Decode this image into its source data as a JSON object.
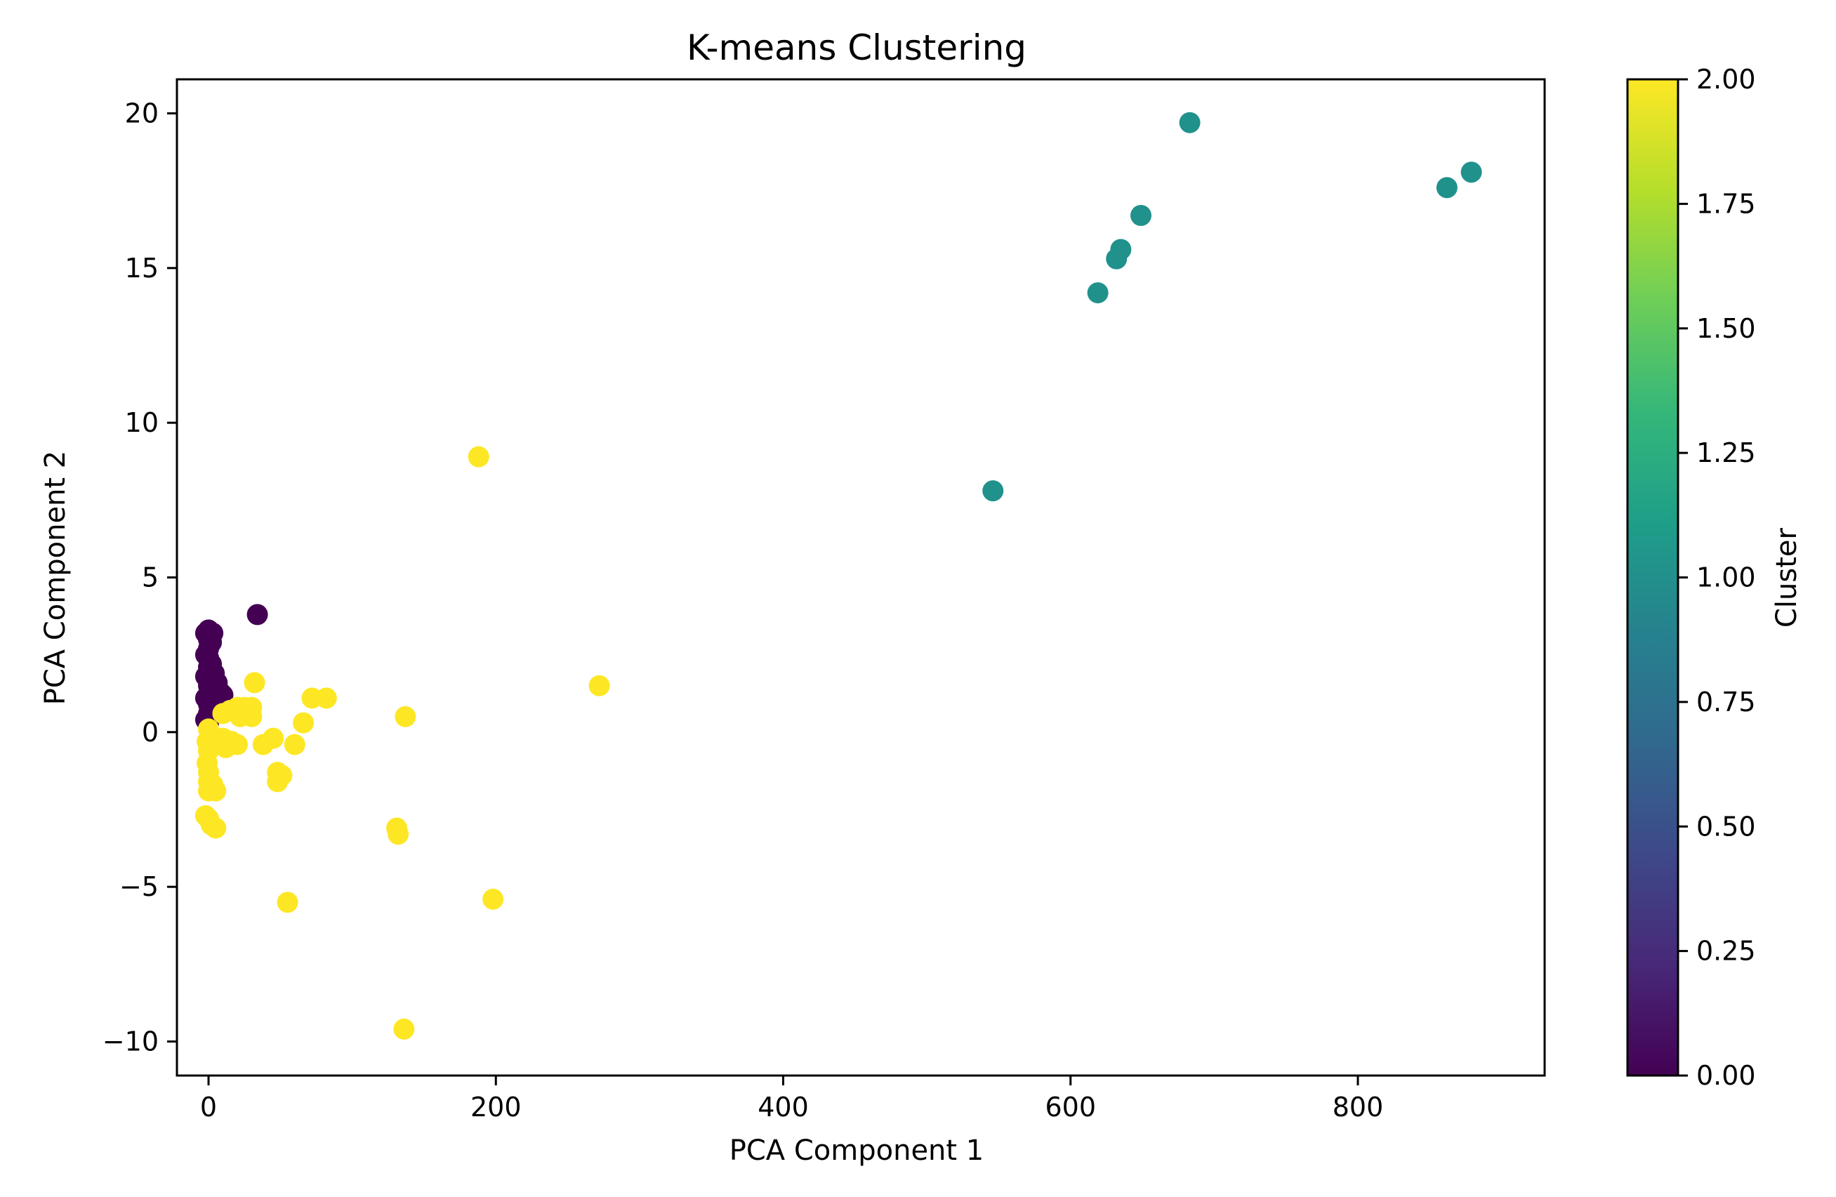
{
  "chart_data": {
    "type": "scatter",
    "title": "K-means Clustering",
    "xlabel": "PCA Component 1",
    "ylabel": "PCA Component 2",
    "xlim": [
      -22,
      930
    ],
    "ylim": [
      -11.1,
      21.1
    ],
    "xticks": [
      0,
      200,
      400,
      600,
      800
    ],
    "yticks": [
      -10,
      -5,
      0,
      5,
      10,
      15,
      20
    ],
    "grid": false,
    "legend": "none",
    "colorbar": {
      "label": "Cluster",
      "colormap": "viridis",
      "range": [
        0.0,
        2.0
      ],
      "ticks": [
        "0.00",
        "0.25",
        "0.50",
        "0.75",
        "1.00",
        "1.25",
        "1.50",
        "1.75",
        "2.00"
      ],
      "stops": [
        "#440154",
        "#482878",
        "#3e4989",
        "#31688e",
        "#26828e",
        "#1f9e89",
        "#35b779",
        "#6ece58",
        "#b5de2b",
        "#fde725"
      ]
    },
    "cluster_colors": {
      "0": "#440154",
      "1": "#21918c",
      "2": "#fde725"
    },
    "points": [
      {
        "x": 0,
        "y": 3.3,
        "c": 0
      },
      {
        "x": 0,
        "y": 3.0,
        "c": 0
      },
      {
        "x": 0,
        "y": 2.7,
        "c": 0
      },
      {
        "x": 0,
        "y": 2.4,
        "c": 0
      },
      {
        "x": 0,
        "y": 2.1,
        "c": 0
      },
      {
        "x": 0,
        "y": 1.8,
        "c": 0
      },
      {
        "x": 0,
        "y": 1.5,
        "c": 0
      },
      {
        "x": 0,
        "y": 1.2,
        "c": 0
      },
      {
        "x": 0,
        "y": 0.9,
        "c": 0
      },
      {
        "x": 0,
        "y": 0.6,
        "c": 0
      },
      {
        "x": 0,
        "y": 0.3,
        "c": 0
      },
      {
        "x": -2,
        "y": 3.2,
        "c": 0
      },
      {
        "x": -2,
        "y": 2.5,
        "c": 0
      },
      {
        "x": -2,
        "y": 1.8,
        "c": 0
      },
      {
        "x": -2,
        "y": 1.1,
        "c": 0
      },
      {
        "x": -2,
        "y": 0.4,
        "c": 0
      },
      {
        "x": 2,
        "y": 2.9,
        "c": 0
      },
      {
        "x": 2,
        "y": 2.2,
        "c": 0
      },
      {
        "x": 2,
        "y": 1.5,
        "c": 0
      },
      {
        "x": 2,
        "y": 0.8,
        "c": 0
      },
      {
        "x": 3,
        "y": 3.2,
        "c": 0
      },
      {
        "x": 4,
        "y": 1.9,
        "c": 0
      },
      {
        "x": 4,
        "y": 1.3,
        "c": 0
      },
      {
        "x": 5,
        "y": 0.6,
        "c": 0
      },
      {
        "x": 6,
        "y": 1.6,
        "c": 0
      },
      {
        "x": 8,
        "y": 1.3,
        "c": 0
      },
      {
        "x": 10,
        "y": 1.2,
        "c": 0
      },
      {
        "x": 7,
        "y": 0.8,
        "c": 0
      },
      {
        "x": 34,
        "y": 3.8,
        "c": 0
      },
      {
        "x": 546,
        "y": 7.8,
        "c": 1
      },
      {
        "x": 619,
        "y": 14.2,
        "c": 1
      },
      {
        "x": 632,
        "y": 15.3,
        "c": 1
      },
      {
        "x": 635,
        "y": 15.6,
        "c": 1
      },
      {
        "x": 649,
        "y": 16.7,
        "c": 1
      },
      {
        "x": 683,
        "y": 19.7,
        "c": 1
      },
      {
        "x": 862,
        "y": 17.6,
        "c": 1
      },
      {
        "x": 879,
        "y": 18.1,
        "c": 1
      },
      {
        "x": 188,
        "y": 8.9,
        "c": 2
      },
      {
        "x": 272,
        "y": 1.5,
        "c": 2
      },
      {
        "x": 137,
        "y": 0.5,
        "c": 2
      },
      {
        "x": 32,
        "y": 1.6,
        "c": 2
      },
      {
        "x": 72,
        "y": 1.1,
        "c": 2
      },
      {
        "x": 82,
        "y": 1.1,
        "c": 2
      },
      {
        "x": 10,
        "y": 0.6,
        "c": 2
      },
      {
        "x": 15,
        "y": 0.7,
        "c": 2
      },
      {
        "x": 20,
        "y": 0.8,
        "c": 2
      },
      {
        "x": 25,
        "y": 0.8,
        "c": 2
      },
      {
        "x": 30,
        "y": 0.8,
        "c": 2
      },
      {
        "x": 30,
        "y": 0.5,
        "c": 2
      },
      {
        "x": 22,
        "y": 0.5,
        "c": 2
      },
      {
        "x": 66,
        "y": 0.3,
        "c": 2
      },
      {
        "x": 0,
        "y": 0.1,
        "c": 2
      },
      {
        "x": 2,
        "y": -0.1,
        "c": 2
      },
      {
        "x": -1,
        "y": -0.3,
        "c": 2
      },
      {
        "x": 10,
        "y": -0.2,
        "c": 2
      },
      {
        "x": 16,
        "y": -0.3,
        "c": 2
      },
      {
        "x": 20,
        "y": -0.4,
        "c": 2
      },
      {
        "x": 12,
        "y": -0.5,
        "c": 2
      },
      {
        "x": 38,
        "y": -0.4,
        "c": 2
      },
      {
        "x": 45,
        "y": -0.2,
        "c": 2
      },
      {
        "x": 60,
        "y": -0.4,
        "c": 2
      },
      {
        "x": 0,
        "y": -0.6,
        "c": 2
      },
      {
        "x": -1,
        "y": -1.0,
        "c": 2
      },
      {
        "x": 0,
        "y": -1.3,
        "c": 2
      },
      {
        "x": 0,
        "y": -1.6,
        "c": 2
      },
      {
        "x": 0,
        "y": -1.9,
        "c": 2
      },
      {
        "x": 3,
        "y": -1.7,
        "c": 2
      },
      {
        "x": 5,
        "y": -1.9,
        "c": 2
      },
      {
        "x": 48,
        "y": -1.3,
        "c": 2
      },
      {
        "x": 48,
        "y": -1.6,
        "c": 2
      },
      {
        "x": 51,
        "y": -1.4,
        "c": 2
      },
      {
        "x": -2,
        "y": -2.7,
        "c": 2
      },
      {
        "x": 0,
        "y": -2.8,
        "c": 2
      },
      {
        "x": 2,
        "y": -3.0,
        "c": 2
      },
      {
        "x": 5,
        "y": -3.1,
        "c": 2
      },
      {
        "x": 131,
        "y": -3.1,
        "c": 2
      },
      {
        "x": 132,
        "y": -3.3,
        "c": 2
      },
      {
        "x": 55,
        "y": -5.5,
        "c": 2
      },
      {
        "x": 198,
        "y": -5.4,
        "c": 2
      },
      {
        "x": 136,
        "y": -9.6,
        "c": 2
      }
    ]
  }
}
